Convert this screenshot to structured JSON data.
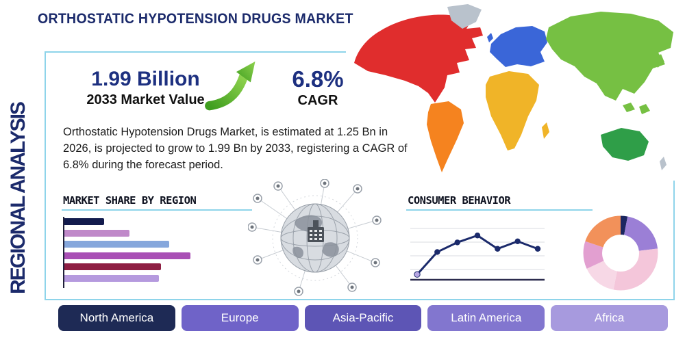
{
  "page": {
    "title": "ORTHOSTATIC HYPOTENSION DRUGS MARKET",
    "vertical_label": "REGIONAL ANALYSIS"
  },
  "stats": {
    "market_value": "1.99 Billion",
    "market_value_caption": "2033 Market Value",
    "cagr_value": "6.8%",
    "cagr_caption": "CAGR",
    "growth_icon": "up-trend-arrow-icon",
    "arrow_gradient": [
      "#3f9e1f",
      "#8ed24e"
    ]
  },
  "description": "Orthostatic Hypotension Drugs Market, is estimated at 1.25 Bn in 2026, is projected to grow to 1.99 Bn by 2033, registering a CAGR of 6.8% during the forecast period.",
  "sections": {
    "market_share_title": "MARKET SHARE BY REGION",
    "consumer_behavior_title": "CONSUMER BEHAVIOR"
  },
  "map": {
    "regions": [
      {
        "name": "north-america",
        "color": "#e02d2d"
      },
      {
        "name": "greenland",
        "color": "#b9c2cc"
      },
      {
        "name": "south-america",
        "color": "#f5831f"
      },
      {
        "name": "europe",
        "color": "#3a66d8"
      },
      {
        "name": "africa",
        "color": "#f0b428"
      },
      {
        "name": "asia",
        "color": "#76c043"
      },
      {
        "name": "australia",
        "color": "#2f9e48"
      },
      {
        "name": "islands",
        "color": "#b9c2cc"
      }
    ]
  },
  "chart_data": [
    {
      "id": "market_share_by_region",
      "type": "bar",
      "orientation": "horizontal",
      "title": "MARKET SHARE BY REGION",
      "categories": [
        "",
        "",
        "",
        "",
        "",
        ""
      ],
      "values": [
        20,
        33,
        53,
        64,
        49,
        48
      ],
      "value_note": "relative bar length, percent of chart width; bars unlabeled in source",
      "colors": [
        "#131b4d",
        "#c089c9",
        "#86a7dc",
        "#a94fb5",
        "#8e1f43",
        "#b59ade"
      ],
      "grid": false,
      "legend": "none"
    },
    {
      "id": "consumer_behavior",
      "type": "line",
      "title": "CONSUMER BEHAVIOR",
      "x": [
        1,
        2,
        3,
        4,
        5,
        6,
        7
      ],
      "values": [
        10,
        52,
        70,
        83,
        58,
        72,
        58
      ],
      "value_note": "relative heights 0-100 estimated from unlabeled axis",
      "line_color": "#1b2a6b",
      "first_marker_color": "#b7a6e3",
      "grid": true,
      "legend": "none"
    },
    {
      "id": "regional_share_donut",
      "type": "pie",
      "donut": true,
      "values": [
        3,
        20,
        30,
        15,
        12,
        20
      ],
      "value_note": "percent of ring, clockwise from top; slices unlabeled in source",
      "colors": [
        "#1b2660",
        "#9b7fd6",
        "#f4c6da",
        "#f7d8e6",
        "#e29fd0",
        "#f2915a"
      ],
      "legend": "none"
    }
  ],
  "region_buttons": [
    {
      "label": "North America",
      "color": "#1e2a55"
    },
    {
      "label": "Europe",
      "color": "#6f63c8"
    },
    {
      "label": "Asia-Pacific",
      "color": "#5d55b5"
    },
    {
      "label": "Latin America",
      "color": "#8276cf"
    },
    {
      "label": "Africa",
      "color": "#a79ade"
    }
  ],
  "theme": {
    "title_color": "#1b2a6b",
    "stat_value_color": "#1d3080",
    "panel_border_color": "#8ed4ea",
    "heading_underline_color": "#8ed4ea"
  }
}
